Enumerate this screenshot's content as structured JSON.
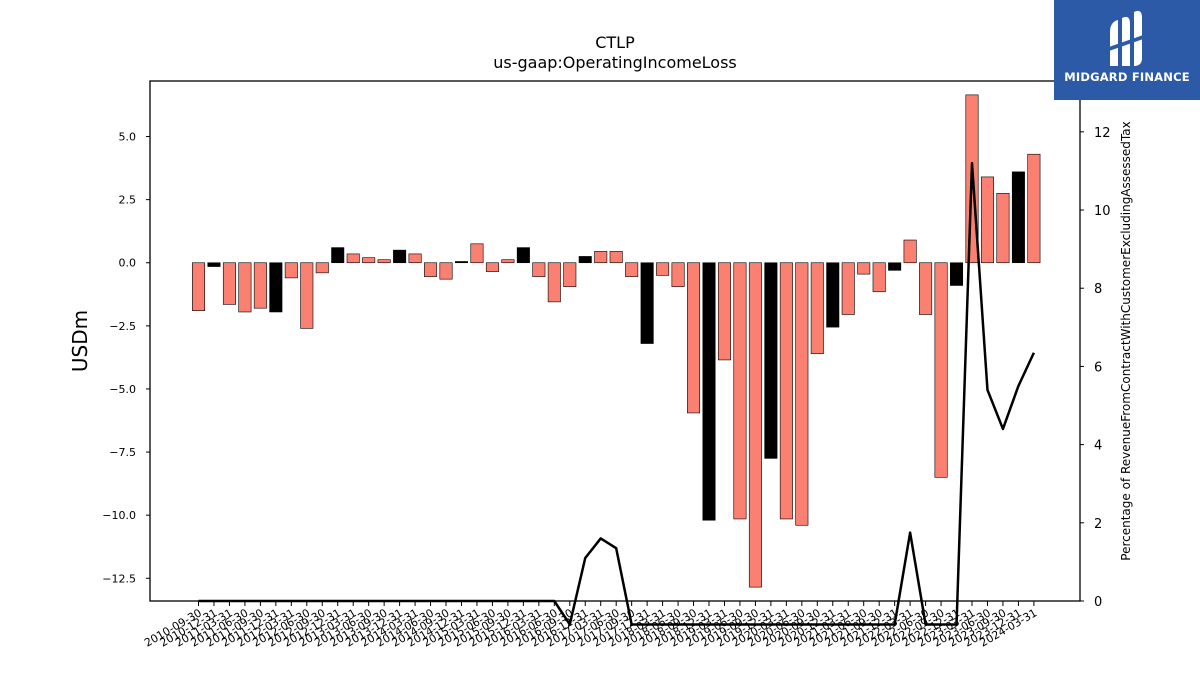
{
  "chart_data": {
    "type": "bar",
    "title": "CTLP",
    "subtitle": "us-gaap:OperatingIncomeLoss",
    "ylabel": "USDm",
    "y2label": "Percentage of RevenueFromContractWithCustomerExcludingAssessedTax",
    "ylim": [
      -13.4,
      7.2
    ],
    "y2lim": [
      0,
      13.3
    ],
    "yticks": [
      5.0,
      2.5,
      0.0,
      -2.5,
      -5.0,
      -7.5,
      -10.0,
      -12.5
    ],
    "ytick_labels": [
      "5.0",
      "2.5",
      "0.0",
      "−2.5",
      "−5.0",
      "−7.5",
      "−10.0",
      "−12.5"
    ],
    "y2ticks": [
      0,
      2,
      4,
      6,
      8,
      10,
      12
    ],
    "grid": false,
    "categories": [
      "2010-09-30",
      "2010-12-31",
      "2011-03-31",
      "2011-06-30",
      "2011-09-30",
      "2011-12-31",
      "2012-03-31",
      "2012-06-30",
      "2012-09-30",
      "2012-12-31",
      "2013-03-31",
      "2013-06-30",
      "2013-09-30",
      "2013-12-31",
      "2014-03-31",
      "2014-06-30",
      "2014-09-30",
      "2014-12-31",
      "2015-03-31",
      "2015-06-30",
      "2015-09-30",
      "2015-12-31",
      "2016-03-31",
      "2016-06-30",
      "2016-09-30",
      "2016-12-31",
      "2017-03-31",
      "2017-06-30",
      "2017-09-30",
      "2017-12-31",
      "2018-03-31",
      "2018-06-30",
      "2018-09-30",
      "2018-12-31",
      "2019-03-31",
      "2019-06-30",
      "2019-09-30",
      "2019-12-31",
      "2020-03-31",
      "2020-06-30",
      "2020-09-30",
      "2020-12-31",
      "2021-03-31",
      "2021-06-30",
      "2021-09-30",
      "2021-12-31",
      "2022-03-31",
      "2022-06-30",
      "2022-09-30",
      "2022-12-31",
      "2023-03-31",
      "2023-06-30",
      "2023-09-30",
      "2023-12-31",
      "2024-03-31"
    ],
    "values": [
      -1.9,
      -0.15,
      -1.65,
      -1.95,
      -1.8,
      -1.95,
      -0.6,
      -2.6,
      -0.4,
      0.6,
      0.35,
      0.2,
      0.12,
      0.5,
      0.35,
      -0.55,
      -0.65,
      0.05,
      0.75,
      -0.35,
      0.12,
      0.6,
      -0.55,
      -1.55,
      -0.95,
      0.25,
      0.45,
      0.45,
      -0.55,
      -3.2,
      -0.5,
      -0.95,
      -5.95,
      -10.2,
      -3.85,
      -10.15,
      -12.85,
      -7.75,
      -10.15,
      -10.4,
      -3.6,
      -2.55,
      -2.05,
      -0.45,
      -1.15,
      -0.3,
      0.9,
      -2.05,
      -8.5,
      -0.9,
      6.65,
      3.4,
      2.75,
      3.6,
      4.3
    ],
    "highlight": [
      false,
      true,
      false,
      false,
      false,
      true,
      false,
      false,
      false,
      true,
      false,
      false,
      false,
      true,
      false,
      false,
      false,
      true,
      false,
      false,
      false,
      true,
      false,
      false,
      false,
      true,
      false,
      false,
      false,
      true,
      false,
      false,
      false,
      true,
      false,
      false,
      false,
      true,
      false,
      false,
      false,
      true,
      false,
      false,
      false,
      true,
      false,
      false,
      false,
      true,
      false,
      false,
      false,
      true,
      false
    ],
    "line": [
      0,
      0,
      0,
      0,
      0,
      0,
      0,
      0,
      0,
      0,
      0,
      0,
      0,
      0,
      0,
      0,
      0,
      0,
      0,
      0,
      0,
      0,
      0,
      0,
      -0.6,
      1.1,
      1.6,
      1.35,
      -0.6,
      -0.6,
      -0.6,
      -0.6,
      -0.6,
      -0.6,
      -0.6,
      -0.6,
      -0.6,
      -0.6,
      -0.6,
      -0.6,
      -0.6,
      -0.6,
      -0.6,
      -0.6,
      -0.6,
      -0.6,
      1.75,
      -0.6,
      -0.6,
      -0.6,
      11.2,
      5.4,
      4.4,
      5.5,
      6.35
    ],
    "colors": {
      "bar": "#fa8072",
      "bar_highlight": "#000000",
      "line": "#000000"
    }
  },
  "logo": {
    "text": "MIDGARD FINANCE",
    "bg": "#2d5aa6"
  }
}
